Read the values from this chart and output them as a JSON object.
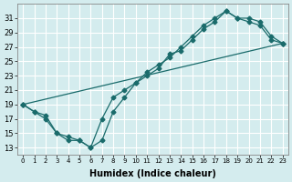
{
  "xlabel": "Humidex (Indice chaleur)",
  "ylabel": "",
  "bg_color": "#d4ecee",
  "line_color": "#1a6b6b",
  "xlim": [
    -0.5,
    23.5
  ],
  "ylim": [
    12,
    33
  ],
  "xticks": [
    0,
    1,
    2,
    3,
    4,
    5,
    6,
    7,
    8,
    9,
    10,
    11,
    12,
    13,
    14,
    15,
    16,
    17,
    18,
    19,
    20,
    21,
    22,
    23
  ],
  "yticks": [
    13,
    15,
    17,
    19,
    21,
    23,
    25,
    27,
    29,
    31
  ],
  "line1_x": [
    0,
    1,
    2,
    3,
    4,
    5,
    6,
    7,
    8,
    9,
    10,
    11,
    12,
    13,
    14,
    15,
    16,
    17,
    18,
    19,
    20,
    21,
    22,
    23
  ],
  "line1_y": [
    19,
    18,
    17,
    15,
    14,
    14,
    13,
    14,
    18,
    20,
    22,
    23,
    24,
    26,
    26.5,
    28,
    29.5,
    30.5,
    32,
    31,
    30.5,
    30,
    28,
    27.5
  ],
  "line2_x": [
    0,
    1,
    2,
    3,
    4,
    5,
    6,
    7,
    8,
    9,
    10,
    11,
    12,
    13,
    14,
    15,
    16,
    17,
    18,
    19,
    20,
    21,
    22,
    23
  ],
  "line2_y": [
    19,
    18,
    17.5,
    15,
    14.5,
    14,
    13,
    17,
    20,
    21,
    22,
    23.5,
    24.5,
    25.5,
    27,
    28.5,
    30,
    31,
    32,
    31,
    31,
    30.5,
    28.5,
    27.5
  ],
  "line3_x": [
    0,
    23
  ],
  "line3_y": [
    19,
    27.5
  ]
}
